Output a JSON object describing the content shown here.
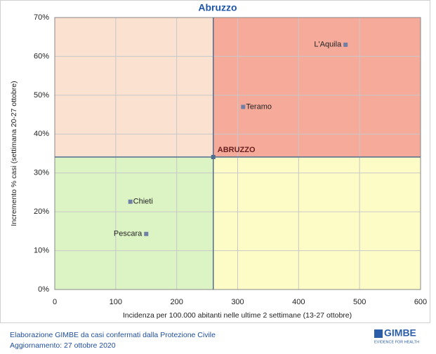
{
  "chart_data": {
    "type": "scatter",
    "title": "Abruzzo",
    "x_label": "Incidenza per 100.000 abitanti nelle ultime 2 settimane (13-27 ottobre)",
    "y_label": "Incremento % casi (settimana 20-27 ottobre)",
    "labels": [
      "L'Aquila",
      "Teramo",
      "Chieti",
      "Pescara"
    ],
    "x": [
      477,
      309,
      124,
      150
    ],
    "values": [
      63,
      47,
      22.6,
      14.3
    ],
    "color": "#6f7fa6",
    "reference": {
      "name": "ABRUZZO",
      "x": 260,
      "y": 34.1,
      "color": "#4f6d8f"
    },
    "quadrant_colors": {
      "top_left": "#fbe1d0",
      "top_right": "#f6aa9a",
      "bottom_left": "#dcf3c4",
      "bottom_right": "#fdfcc6"
    },
    "xlim": [
      0,
      600
    ],
    "xticks": [
      0,
      100,
      200,
      300,
      400,
      500,
      600
    ],
    "ylim": [
      0,
      70
    ],
    "yticks": [
      {
        "value": 0,
        "label": "0%"
      },
      {
        "value": 10,
        "label": "10%"
      },
      {
        "value": 20,
        "label": "20%"
      },
      {
        "value": 30,
        "label": "30%"
      },
      {
        "value": 40,
        "label": "40%"
      },
      {
        "value": 50,
        "label": "50%"
      },
      {
        "value": 60,
        "label": "60%"
      },
      {
        "value": 70,
        "label": "70%"
      }
    ],
    "grid": true
  },
  "footer": {
    "source": "Elaborazione GIMBE da casi confermati dalla Protezione Civile",
    "updated": "Aggiornamento: 27 ottobre 2020",
    "logo": "GIMBE",
    "logo_tagline": "EVIDENCE FOR HEALTH"
  }
}
